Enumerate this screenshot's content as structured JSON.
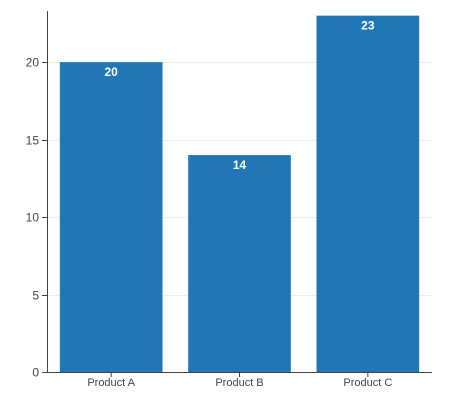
{
  "chart_data": {
    "type": "bar",
    "title": "",
    "xlabel": "",
    "ylabel": "",
    "categories": [
      "Product A",
      "Product B",
      "Product C"
    ],
    "series": [
      {
        "values": [
          20,
          14,
          23
        ]
      }
    ],
    "data_labels": [
      "20",
      "14",
      "23"
    ],
    "ylim": [
      0,
      23.3
    ],
    "yticks": [
      0,
      5,
      10,
      15,
      20
    ],
    "ytick_labels": [
      "0",
      "5",
      "10",
      "15",
      "20"
    ],
    "grid": true,
    "legend": "none"
  },
  "colors": {
    "bar": "#2176b5",
    "axis": "#444444",
    "grid": "#eeeeee",
    "data_label": "#ffffff"
  }
}
